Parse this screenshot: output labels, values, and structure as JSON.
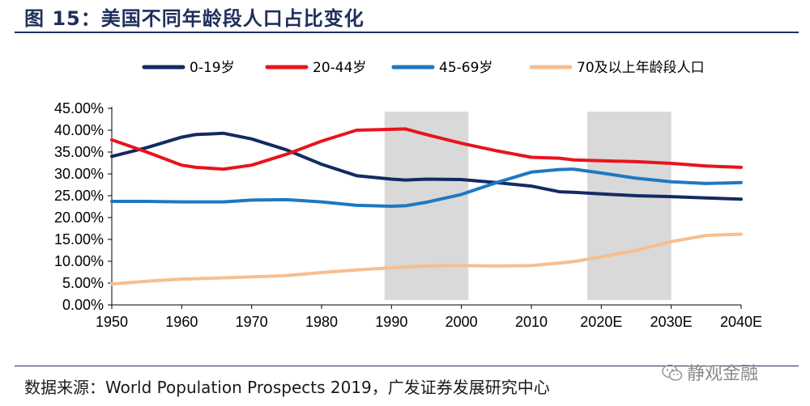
{
  "figure": {
    "title": "图 15：美国不同年龄段人口占比变化",
    "source": "数据来源：World Population Prospects 2019，广发证券发展研究中心",
    "watermark": "静观金融"
  },
  "chart_data": {
    "type": "line",
    "title": "美国不同年龄段人口占比变化",
    "xlabel": "",
    "ylabel": "",
    "x_ticks": [
      "1950",
      "1960",
      "1970",
      "1980",
      "1990",
      "2000",
      "2010",
      "2020E",
      "2030E",
      "2040E"
    ],
    "x_range": [
      1950,
      2040
    ],
    "ylim": [
      0,
      45
    ],
    "y_ticks": [
      "0.00%",
      "5.00%",
      "10.00%",
      "15.00%",
      "20.00%",
      "25.00%",
      "30.00%",
      "35.00%",
      "40.00%",
      "45.00%"
    ],
    "shaded_ranges": [
      [
        1989,
        2001
      ],
      [
        2018,
        2030
      ]
    ],
    "legend_position": "top",
    "x": [
      1950,
      1955,
      1960,
      1962,
      1966,
      1970,
      1975,
      1980,
      1985,
      1990,
      1992,
      1995,
      2000,
      2005,
      2010,
      2014,
      2016,
      2020,
      2025,
      2030,
      2035,
      2040
    ],
    "series": [
      {
        "name": "0-19岁",
        "color": "#132a63",
        "values": [
          34.0,
          36.0,
          38.4,
          39.0,
          39.3,
          38.0,
          35.5,
          32.2,
          29.6,
          28.8,
          28.6,
          28.8,
          28.7,
          28.0,
          27.2,
          25.9,
          25.8,
          25.4,
          25.0,
          24.8,
          24.5,
          24.2
        ]
      },
      {
        "name": "20-44岁",
        "color": "#e8141c",
        "values": [
          37.8,
          35.0,
          32.0,
          31.5,
          31.1,
          32.0,
          34.5,
          37.5,
          40.0,
          40.2,
          40.3,
          39.0,
          37.0,
          35.3,
          33.8,
          33.6,
          33.2,
          33.0,
          32.8,
          32.4,
          31.8,
          31.5
        ]
      },
      {
        "name": "45-69岁",
        "color": "#1f78c1",
        "values": [
          23.7,
          23.7,
          23.6,
          23.6,
          23.6,
          24.0,
          24.1,
          23.6,
          22.8,
          22.6,
          22.7,
          23.5,
          25.3,
          28.0,
          30.4,
          31.0,
          31.1,
          30.2,
          29.0,
          28.2,
          27.8,
          28.0
        ]
      },
      {
        "name": "70及以上年龄段人口",
        "color": "#f5bf8f",
        "values": [
          4.8,
          5.4,
          5.9,
          6.0,
          6.2,
          6.4,
          6.7,
          7.4,
          8.0,
          8.5,
          8.7,
          8.9,
          9.0,
          8.9,
          9.0,
          9.6,
          9.9,
          11.0,
          12.5,
          14.5,
          15.9,
          16.2
        ]
      }
    ]
  }
}
